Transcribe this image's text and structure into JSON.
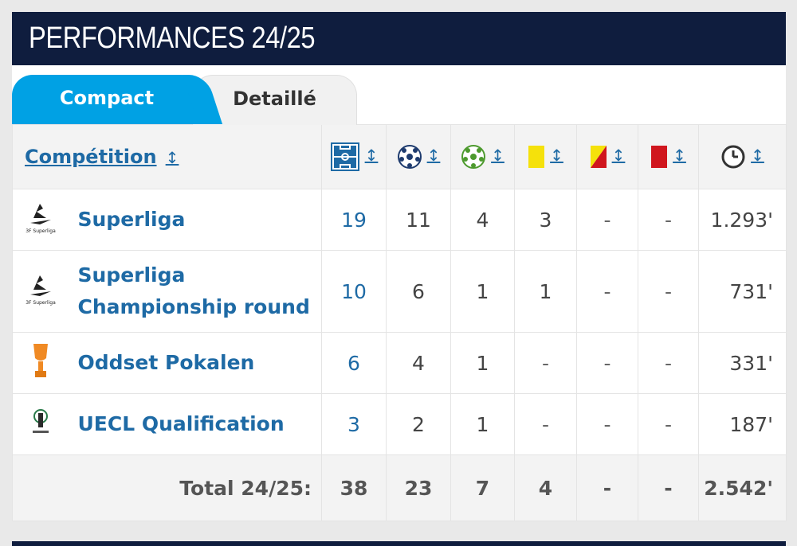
{
  "header": {
    "title": "PERFORMANCES 24/25"
  },
  "tabs": [
    {
      "label": "Compact",
      "active": true
    },
    {
      "label": "Detaillé",
      "active": false
    }
  ],
  "table": {
    "competition_header": "Compétition",
    "sort_glyph": "↕",
    "columns_icons": [
      "pitch-icon",
      "ball-icon",
      "assist-icon",
      "yellow-card-icon",
      "yellow-red-card-icon",
      "red-card-icon",
      "clock-icon"
    ],
    "rows": [
      {
        "name": "Superliga",
        "logo": "superliga-logo",
        "apps": "19",
        "goals": "11",
        "assists": "4",
        "yellow": "3",
        "yellow_red": "-",
        "red": "-",
        "minutes": "1.293'"
      },
      {
        "name": "Superliga Championship round",
        "logo": "superliga-logo",
        "apps": "10",
        "goals": "6",
        "assists": "1",
        "yellow": "1",
        "yellow_red": "-",
        "red": "-",
        "minutes": "731'"
      },
      {
        "name": "Oddset Pokalen",
        "logo": "pokalen-trophy-logo",
        "apps": "6",
        "goals": "4",
        "assists": "1",
        "yellow": "-",
        "yellow_red": "-",
        "red": "-",
        "minutes": "331'"
      },
      {
        "name": "UECL Qualification",
        "logo": "uecl-logo",
        "apps": "3",
        "goals": "2",
        "assists": "1",
        "yellow": "-",
        "yellow_red": "-",
        "red": "-",
        "minutes": "187'"
      }
    ],
    "total": {
      "label": "Total 24/25:",
      "apps": "38",
      "goals": "23",
      "assists": "7",
      "yellow": "4",
      "yellow_red": "-",
      "red": "-",
      "minutes": "2.542'"
    }
  },
  "colors": {
    "header_bg": "#0f1d3e",
    "tab_active": "#00a1e4",
    "link": "#1e6aa5",
    "yellow_card": "#f5e10b",
    "red_card": "#d0161e"
  }
}
